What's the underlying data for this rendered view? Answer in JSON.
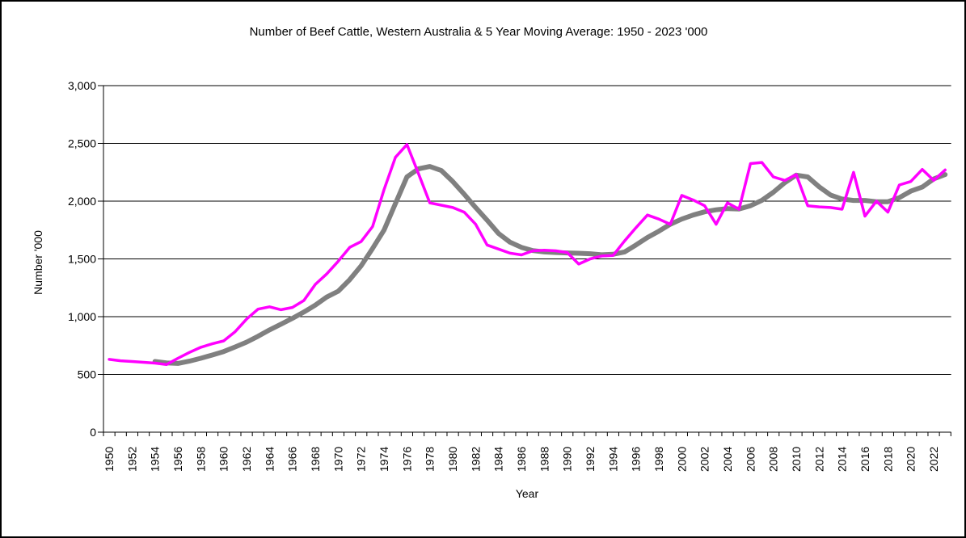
{
  "title": "Number of  Beef Cattle, Western Australia & 5 Year Moving Average: 1950 - 2023 '000",
  "axes": {
    "y_title": "Number '000",
    "x_title": "Year",
    "y_tick_labels": [
      "0",
      "500",
      "1,000",
      "1,500",
      "2,000",
      "2,500",
      "3,000"
    ],
    "x_tick_labels": [
      "1950",
      "1952",
      "1954",
      "1956",
      "1958",
      "1960",
      "1962",
      "1964",
      "1966",
      "1968",
      "1970",
      "1972",
      "1974",
      "1976",
      "1978",
      "1980",
      "1982",
      "1984",
      "1986",
      "1988",
      "1990",
      "1992",
      "1994",
      "1996",
      "1998",
      "2000",
      "2002",
      "2004",
      "2006",
      "2008",
      "2010",
      "2012",
      "2014",
      "2016",
      "2018",
      "2020",
      "2022"
    ]
  },
  "colors": {
    "actual_line": "#FF00FF",
    "moving_average_line": "#808080",
    "axis": "#000000",
    "background": "#FFFFFF"
  },
  "chart_data": {
    "type": "line",
    "title": "Number of  Beef Cattle, Western Australia & 5 Year Moving Average: 1950 - 2023 '000",
    "xlabel": "Year",
    "ylabel": "Number '000",
    "ylim": [
      0,
      3000
    ],
    "y_tick_step": 500,
    "grid": true,
    "legend": "none",
    "x": [
      1950,
      1951,
      1952,
      1953,
      1954,
      1955,
      1956,
      1957,
      1958,
      1959,
      1960,
      1961,
      1962,
      1963,
      1964,
      1965,
      1966,
      1967,
      1968,
      1969,
      1970,
      1971,
      1972,
      1973,
      1974,
      1975,
      1976,
      1977,
      1978,
      1979,
      1980,
      1981,
      1982,
      1983,
      1984,
      1985,
      1986,
      1987,
      1988,
      1989,
      1990,
      1991,
      1992,
      1993,
      1994,
      1995,
      1996,
      1997,
      1998,
      1999,
      2000,
      2001,
      2002,
      2003,
      2004,
      2005,
      2006,
      2007,
      2008,
      2009,
      2010,
      2011,
      2012,
      2013,
      2014,
      2015,
      2016,
      2017,
      2018,
      2019,
      2020,
      2021,
      2022,
      2023
    ],
    "series": [
      {
        "name": "Number of Beef Cattle '000",
        "color": "#FF00FF",
        "stroke_width": 3.5,
        "start_year": 1950,
        "values": [
          630,
          618,
          612,
          605,
          598,
          585,
          640,
          690,
          735,
          765,
          790,
          870,
          980,
          1065,
          1085,
          1060,
          1080,
          1140,
          1280,
          1370,
          1480,
          1600,
          1650,
          1780,
          2100,
          2380,
          2490,
          2240,
          1985,
          1965,
          1945,
          1905,
          1800,
          1620,
          1585,
          1550,
          1535,
          1570,
          1575,
          1570,
          1555,
          1455,
          1500,
          1525,
          1530,
          1655,
          1770,
          1880,
          1845,
          1800,
          2050,
          2010,
          1960,
          1800,
          1985,
          1930,
          2325,
          2335,
          2210,
          2180,
          2230,
          1960,
          1950,
          1945,
          1930,
          2250,
          1870,
          2000,
          1905,
          2140,
          2170,
          2275,
          2180,
          2270
        ]
      },
      {
        "name": "5 Year Moving Average",
        "color": "#808080",
        "stroke_width": 6,
        "start_year": 1954,
        "values": [
          612,
          600,
          595,
          615,
          640,
          668,
          698,
          738,
          780,
          830,
          885,
          935,
          985,
          1040,
          1100,
          1170,
          1220,
          1320,
          1440,
          1590,
          1750,
          1980,
          2210,
          2280,
          2300,
          2265,
          2170,
          2060,
          1945,
          1835,
          1720,
          1645,
          1600,
          1572,
          1560,
          1555,
          1552,
          1549,
          1545,
          1536,
          1540,
          1560,
          1620,
          1685,
          1740,
          1800,
          1845,
          1880,
          1908,
          1925,
          1936,
          1932,
          1960,
          2007,
          2077,
          2160,
          2225,
          2210,
          2124,
          2053,
          2018,
          2006,
          2006,
          1995,
          1995,
          2030,
          2087,
          2122,
          2192,
          2230
        ]
      }
    ]
  }
}
